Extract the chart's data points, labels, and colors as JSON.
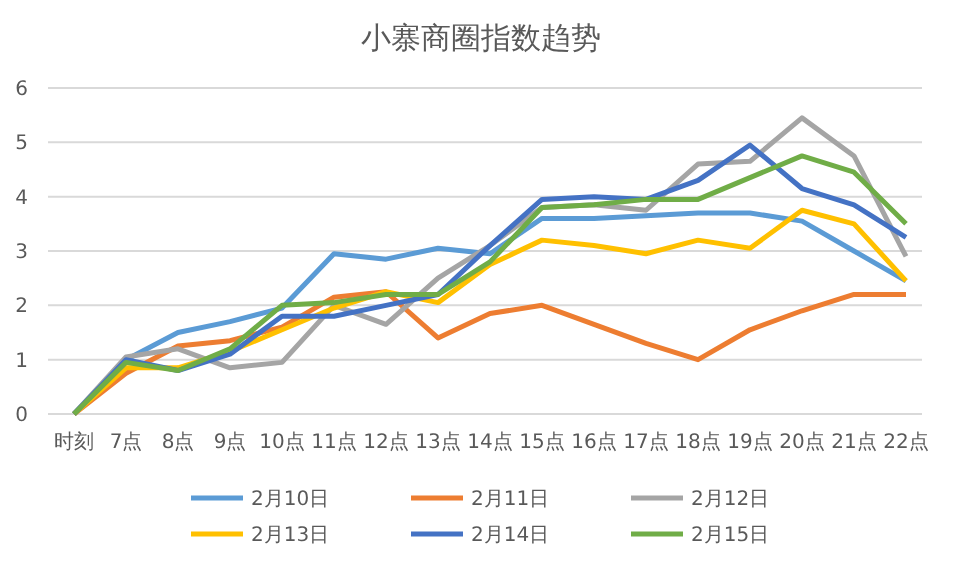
{
  "chart_data": {
    "type": "line",
    "title": "小寨商圈指数趋势",
    "categories": [
      "时刻",
      "7点",
      "8点",
      "9点",
      "10点",
      "11点",
      "12点",
      "13点",
      "14点",
      "15点",
      "16点",
      "17点",
      "18点",
      "19点",
      "20点",
      "21点",
      "22点"
    ],
    "ylim": [
      0,
      6
    ],
    "yticks": [
      0,
      1,
      2,
      3,
      4,
      5,
      6
    ],
    "grid": "y",
    "legend": "bottom",
    "marker": "none",
    "line_style": "solid",
    "series": [
      {
        "name": "2月10日",
        "color": "#5b9bd5",
        "values": [
          0,
          1.0,
          1.5,
          1.7,
          1.95,
          2.95,
          2.85,
          3.05,
          2.95,
          3.6,
          3.6,
          3.65,
          3.7,
          3.7,
          3.55,
          3.0,
          2.45
        ]
      },
      {
        "name": "2月11日",
        "color": "#ed7d31",
        "values": [
          0,
          0.75,
          1.25,
          1.35,
          1.6,
          2.15,
          2.25,
          1.4,
          1.85,
          2.0,
          1.65,
          1.3,
          1.0,
          1.55,
          1.9,
          2.2,
          2.2
        ]
      },
      {
        "name": "2月12日",
        "color": "#a5a5a5",
        "values": [
          0,
          1.05,
          1.2,
          0.85,
          0.95,
          2.0,
          1.65,
          2.5,
          3.1,
          3.8,
          3.85,
          3.75,
          4.6,
          4.65,
          5.45,
          4.75,
          2.9
        ]
      },
      {
        "name": "2月13日",
        "color": "#ffc000",
        "values": [
          0,
          0.85,
          0.85,
          1.15,
          1.55,
          1.95,
          2.25,
          2.05,
          2.75,
          3.2,
          3.1,
          2.95,
          3.2,
          3.05,
          3.75,
          3.5,
          2.45
        ]
      },
      {
        "name": "2月14日",
        "color": "#4472c4",
        "values": [
          0,
          1.0,
          0.8,
          1.1,
          1.8,
          1.8,
          2.0,
          2.2,
          3.1,
          3.95,
          4.0,
          3.95,
          4.3,
          4.95,
          4.15,
          3.85,
          3.25
        ]
      },
      {
        "name": "2月15日",
        "color": "#70ad47",
        "values": [
          0,
          0.95,
          0.8,
          1.2,
          2.0,
          2.05,
          2.2,
          2.2,
          2.8,
          3.8,
          3.85,
          3.95,
          3.95,
          4.35,
          4.75,
          4.45,
          3.5
        ]
      }
    ]
  }
}
